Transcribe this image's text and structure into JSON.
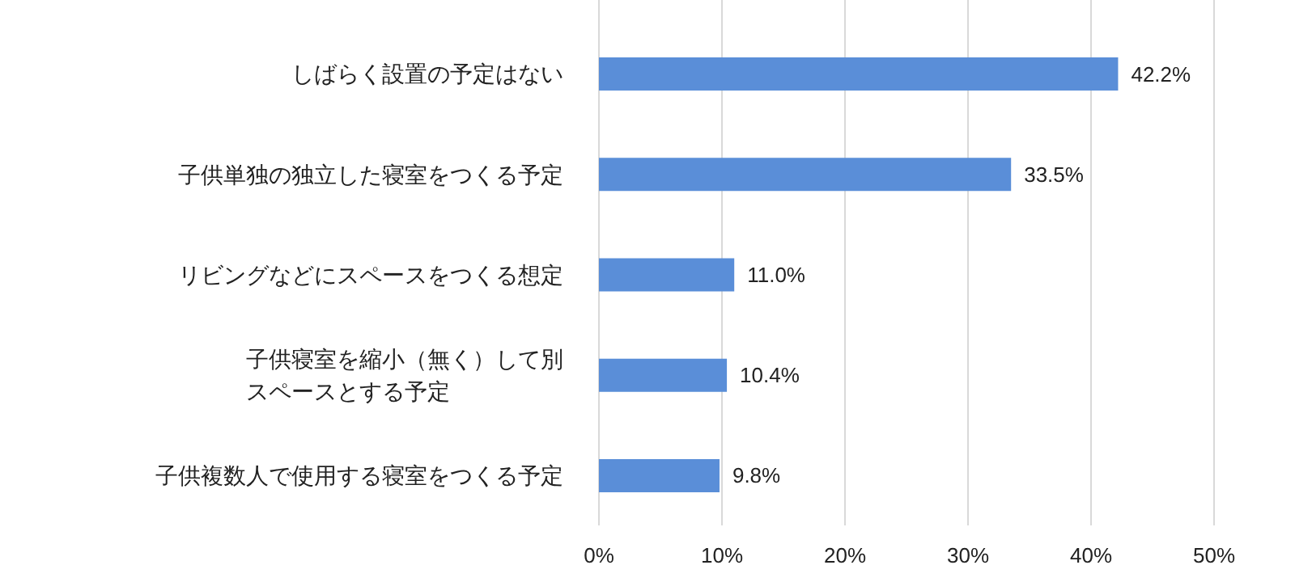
{
  "chart_data": {
    "type": "bar",
    "orientation": "horizontal",
    "categories": [
      "しばらく設置の予定はない",
      "子供単独の独立した寝室をつくる予定",
      "リビングなどにスペースをつくる想定",
      "子供寝室を縮小（無く）して別スペースとする予定",
      "子供複数人で使用する寝室をつくる予定"
    ],
    "values": [
      42.2,
      33.5,
      11.0,
      10.4,
      9.8
    ],
    "value_labels": [
      "42.2%",
      "33.5%",
      "11.0%",
      "10.4%",
      "9.8%"
    ],
    "color": "#5a8ed8",
    "xlim": [
      0,
      50
    ],
    "xticks": [
      {
        "value": 0,
        "label": "0%"
      },
      {
        "value": 10,
        "label": "10%"
      },
      {
        "value": 20,
        "label": "20%"
      },
      {
        "value": 30,
        "label": "30%"
      },
      {
        "value": 40,
        "label": "40%"
      },
      {
        "value": 50,
        "label": "50%"
      }
    ],
    "grid": "x"
  }
}
